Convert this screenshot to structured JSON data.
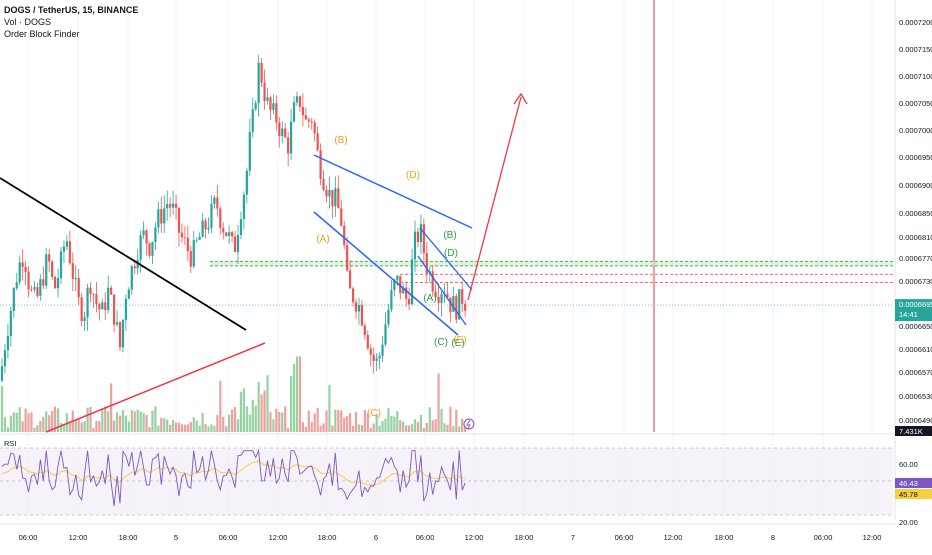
{
  "legend": {
    "symbol": "DOGS / TetherUS, 15, BINANCE",
    "volume": "Vol · DOGS",
    "indicator": "Order Block Finder"
  },
  "price_axis": {
    "ticks": [
      "0.0007200",
      "0.0007150",
      "0.0007100",
      "0.0007050",
      "0.0007000",
      "0.0006950",
      "0.0006900",
      "0.0006850",
      "0.0006810",
      "0.0006770",
      "0.0006730",
      "0.0006650",
      "0.0006610",
      "0.0006570",
      "0.0006530",
      "0.0006490"
    ],
    "last_price": "0.0006695",
    "countdown": "14:41",
    "volume_badge": "7.431K"
  },
  "rsi": {
    "label": "RSI",
    "ticks": [
      "60.00",
      "20.00"
    ],
    "value": "46.43",
    "ma_value": "45.78"
  },
  "time_axis": {
    "labels": [
      "06:00",
      "12:00",
      "18:00",
      "5",
      "06:00",
      "12:00",
      "18:00",
      "6",
      "06:00",
      "12:00",
      "18:00",
      "7",
      "06:00",
      "12:00",
      "18:00",
      "8",
      "06:00",
      "12:00"
    ]
  },
  "wave_labels": [
    {
      "text": "(B)",
      "color": "#f0a020"
    },
    {
      "text": "(D)",
      "color": "#f0a020"
    },
    {
      "text": "(A)",
      "color": "#f0a020"
    },
    {
      "text": "(C)",
      "color": "#f0a020"
    },
    {
      "text": "(B)",
      "color": "#2e9e40"
    },
    {
      "text": "(D)",
      "color": "#2e9e40"
    },
    {
      "text": "(A)",
      "color": "#2e9e40"
    },
    {
      "text": "(C)",
      "color": "#2e9e40"
    },
    {
      "text": "(E)",
      "color": "#2e9e40"
    },
    {
      "text": "(E)",
      "color": "#f0a020"
    }
  ],
  "colors": {
    "up": "#26a69a",
    "down": "#ef5350",
    "vol_up": "#7cc58a",
    "vol_down": "#e88a86",
    "rsi_line": "#7e57c2",
    "rsi_ma": "#f4d03f",
    "blue_line": "#2962ff",
    "black_line": "#000000",
    "red_line": "#f23645"
  },
  "chart_data": {
    "type": "candlestick",
    "symbol": "DOGS / TetherUS",
    "timeframe": "15",
    "exchange": "BINANCE",
    "ylim": [
      0.000648,
      0.000722
    ],
    "price_path": [
      [
        0,
        0.000656
      ],
      [
        6,
        0.000664
      ],
      [
        12,
        0.00067
      ],
      [
        18,
        0.000676
      ],
      [
        24,
        0.000679
      ],
      [
        30,
        0.000672
      ],
      [
        36,
        0.00067
      ],
      [
        42,
        0.000674
      ],
      [
        48,
        0.000678
      ],
      [
        54,
        0.000672
      ],
      [
        60,
        0.000676
      ],
      [
        66,
        0.000682
      ],
      [
        72,
        0.000676
      ],
      [
        78,
        0.00067
      ],
      [
        84,
        0.000668
      ],
      [
        90,
        0.000674
      ],
      [
        96,
        0.00067
      ],
      [
        102,
        0.000668
      ],
      [
        108,
        0.000672
      ],
      [
        114,
        0.000668
      ],
      [
        120,
        0.000662
      ],
      [
        126,
        0.000672
      ],
      [
        132,
        0.000676
      ],
      [
        138,
        0.00068
      ],
      [
        144,
        0.000682
      ],
      [
        150,
        0.00068
      ],
      [
        156,
        0.000684
      ],
      [
        162,
        0.000686
      ],
      [
        168,
        0.000688
      ],
      [
        174,
        0.000686
      ],
      [
        180,
        0.000682
      ],
      [
        186,
        0.00068
      ],
      [
        192,
        0.000678
      ],
      [
        198,
        0.000681
      ],
      [
        204,
        0.000683
      ],
      [
        210,
        0.000685
      ],
      [
        216,
        0.000688
      ],
      [
        222,
        0.000684
      ],
      [
        228,
        0.000682
      ],
      [
        234,
        0.000679
      ],
      [
        240,
        0.000686
      ],
      [
        246,
        0.000692
      ],
      [
        250,
        0.000699
      ],
      [
        254,
        0.000704
      ],
      [
        258,
        0.000712
      ],
      [
        262,
        0.00071
      ],
      [
        266,
        0.000706
      ],
      [
        270,
        0.000704
      ],
      [
        276,
        0.000703
      ],
      [
        282,
        0.0007
      ],
      [
        288,
        0.000698
      ],
      [
        294,
        0.000704
      ],
      [
        300,
        0.000706
      ],
      [
        306,
        0.000702
      ],
      [
        312,
        0.000703
      ],
      [
        318,
        0.000696
      ],
      [
        324,
        0.000692
      ],
      [
        330,
        0.000689
      ],
      [
        336,
        0.000688
      ],
      [
        342,
        0.000684
      ],
      [
        348,
        0.000672
      ],
      [
        354,
        0.000671
      ],
      [
        360,
        0.000669
      ],
      [
        366,
        0.000665
      ],
      [
        372,
        0.00066
      ],
      [
        378,
        0.000659
      ],
      [
        384,
        0.000665
      ],
      [
        390,
        0.00067
      ],
      [
        396,
        0.000674
      ],
      [
        402,
        0.000672
      ],
      [
        408,
        0.00067
      ],
      [
        414,
        0.00068
      ],
      [
        420,
        0.000683
      ],
      [
        426,
        0.000677
      ],
      [
        432,
        0.000674
      ],
      [
        438,
        0.000672
      ],
      [
        444,
        0.000673
      ],
      [
        450,
        0.00067
      ],
      [
        456,
        0.000669
      ],
      [
        462,
        0.000671
      ],
      [
        468,
        0.0006695
      ]
    ],
    "annotation_levels": {
      "green_zone": [
        0.0006765,
        0.0006773
      ],
      "red_levels": [
        0.000675,
        0.0006735
      ]
    },
    "vertical_marker_time": "7 06:00",
    "rsi": {
      "range": [
        20,
        70
      ],
      "levels": [
        30,
        50,
        70
      ],
      "last": 46.43,
      "ma_last": 45.78
    }
  }
}
